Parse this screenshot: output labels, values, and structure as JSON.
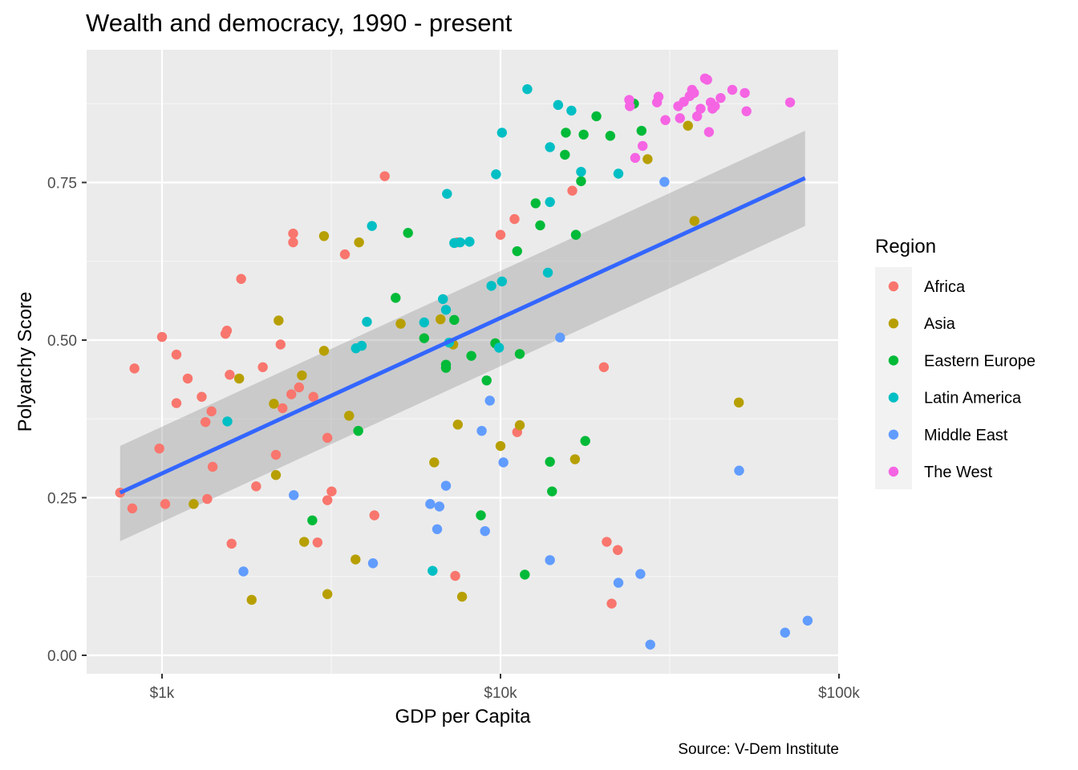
{
  "chart_data": {
    "type": "scatter",
    "title": "Wealth and democracy, 1990 - present",
    "xlabel": "GDP per Capita",
    "ylabel": "Polyarchy Score",
    "caption": "Source: V-Dem Institute",
    "x_scale": "log10",
    "xlim": [
      600,
      100000
    ],
    "ylim": [
      -0.03,
      0.96
    ],
    "x_ticks": [
      {
        "value": 1000,
        "label": "$1k"
      },
      {
        "value": 10000,
        "label": "$10k"
      },
      {
        "value": 100000,
        "label": "$100k"
      }
    ],
    "y_ticks": [
      {
        "value": 0,
        "label": "0.00"
      },
      {
        "value": 0.25,
        "label": "0.25"
      },
      {
        "value": 0.5,
        "label": "0.50"
      },
      {
        "value": 0.75,
        "label": "0.75"
      }
    ],
    "grid": true,
    "legend": {
      "title": "Region",
      "position": "right"
    },
    "series": [
      {
        "name": "Africa",
        "color": "#F8766D",
        "points": [
          [
            752,
            0.258
          ],
          [
            817,
            0.233
          ],
          [
            829,
            0.455
          ],
          [
            982,
            0.328
          ],
          [
            1000,
            0.505
          ],
          [
            1022,
            0.24
          ],
          [
            1103,
            0.477
          ],
          [
            1103,
            0.4
          ],
          [
            1191,
            0.439
          ],
          [
            1310,
            0.41
          ],
          [
            1344,
            0.37
          ],
          [
            1360,
            0.248
          ],
          [
            1400,
            0.387
          ],
          [
            1411,
            0.299
          ],
          [
            1540,
            0.51
          ],
          [
            1555,
            0.515
          ],
          [
            1585,
            0.445
          ],
          [
            1605,
            0.177
          ],
          [
            1713,
            0.597
          ],
          [
            1897,
            0.268
          ],
          [
            1985,
            0.457
          ],
          [
            2170,
            0.318
          ],
          [
            2240,
            0.493
          ],
          [
            2270,
            0.392
          ],
          [
            2410,
            0.414
          ],
          [
            2440,
            0.669
          ],
          [
            2440,
            0.655
          ],
          [
            2540,
            0.425
          ],
          [
            2800,
            0.41
          ],
          [
            2880,
            0.179
          ],
          [
            3080,
            0.345
          ],
          [
            3080,
            0.246
          ],
          [
            3170,
            0.26
          ],
          [
            3470,
            0.636
          ],
          [
            4240,
            0.222
          ],
          [
            4550,
            0.76
          ],
          [
            7350,
            0.126
          ],
          [
            7450,
            0.655
          ],
          [
            10000,
            0.667
          ],
          [
            11000,
            0.692
          ],
          [
            11200,
            0.354
          ],
          [
            16300,
            0.737
          ],
          [
            20200,
            0.457
          ],
          [
            20600,
            0.18
          ],
          [
            21300,
            0.082
          ],
          [
            22200,
            0.167
          ]
        ]
      },
      {
        "name": "Asia",
        "color": "#B79F00",
        "points": [
          [
            1240,
            0.24
          ],
          [
            1690,
            0.439
          ],
          [
            1840,
            0.088
          ],
          [
            2140,
            0.399
          ],
          [
            2170,
            0.286
          ],
          [
            2210,
            0.531
          ],
          [
            2590,
            0.444
          ],
          [
            2630,
            0.18
          ],
          [
            3010,
            0.483
          ],
          [
            3010,
            0.665
          ],
          [
            3080,
            0.097
          ],
          [
            3570,
            0.38
          ],
          [
            3730,
            0.152
          ],
          [
            3820,
            0.655
          ],
          [
            5070,
            0.526
          ],
          [
            6370,
            0.306
          ],
          [
            6650,
            0.533
          ],
          [
            7250,
            0.493
          ],
          [
            7480,
            0.366
          ],
          [
            7700,
            0.093
          ],
          [
            10000,
            0.332
          ],
          [
            11400,
            0.365
          ],
          [
            16600,
            0.311
          ],
          [
            27200,
            0.787
          ],
          [
            35800,
            0.84
          ],
          [
            37400,
            0.689
          ],
          [
            50600,
            0.401
          ]
        ]
      },
      {
        "name": "Eastern Europe",
        "color": "#00BA38",
        "points": [
          [
            2780,
            0.214
          ],
          [
            3800,
            0.356
          ],
          [
            4900,
            0.567
          ],
          [
            5330,
            0.67
          ],
          [
            5950,
            0.503
          ],
          [
            6900,
            0.461
          ],
          [
            6900,
            0.456
          ],
          [
            7300,
            0.532
          ],
          [
            8200,
            0.475
          ],
          [
            8750,
            0.222
          ],
          [
            9100,
            0.436
          ],
          [
            9650,
            0.495
          ],
          [
            11200,
            0.641
          ],
          [
            11400,
            0.478
          ],
          [
            11800,
            0.128
          ],
          [
            12700,
            0.717
          ],
          [
            13100,
            0.682
          ],
          [
            14000,
            0.307
          ],
          [
            14200,
            0.26
          ],
          [
            15500,
            0.794
          ],
          [
            15600,
            0.829
          ],
          [
            16700,
            0.667
          ],
          [
            17300,
            0.752
          ],
          [
            17600,
            0.826
          ],
          [
            17800,
            0.34
          ],
          [
            19200,
            0.855
          ],
          [
            21100,
            0.824
          ],
          [
            24800,
            0.875
          ],
          [
            26100,
            0.832
          ]
        ]
      },
      {
        "name": "Latin America",
        "color": "#00BFC4",
        "points": [
          [
            1560,
            0.371
          ],
          [
            3740,
            0.487
          ],
          [
            3890,
            0.491
          ],
          [
            4030,
            0.529
          ],
          [
            4170,
            0.681
          ],
          [
            5950,
            0.528
          ],
          [
            6300,
            0.134
          ],
          [
            6760,
            0.565
          ],
          [
            6900,
            0.548
          ],
          [
            6950,
            0.732
          ],
          [
            7050,
            0.496
          ],
          [
            7300,
            0.654
          ],
          [
            7600,
            0.655
          ],
          [
            8100,
            0.656
          ],
          [
            9400,
            0.586
          ],
          [
            9700,
            0.763
          ],
          [
            9900,
            0.488
          ],
          [
            10100,
            0.593
          ],
          [
            10100,
            0.829
          ],
          [
            12000,
            0.898
          ],
          [
            13800,
            0.607
          ],
          [
            14000,
            0.719
          ],
          [
            14000,
            0.806
          ],
          [
            14800,
            0.873
          ],
          [
            16200,
            0.864
          ],
          [
            17300,
            0.767
          ],
          [
            22300,
            0.764
          ]
        ]
      },
      {
        "name": "Middle East",
        "color": "#619CFF",
        "points": [
          [
            1740,
            0.133
          ],
          [
            2450,
            0.254
          ],
          [
            4200,
            0.146
          ],
          [
            6200,
            0.24
          ],
          [
            6500,
            0.2
          ],
          [
            6600,
            0.236
          ],
          [
            6900,
            0.269
          ],
          [
            8800,
            0.356
          ],
          [
            9000,
            0.197
          ],
          [
            9300,
            0.404
          ],
          [
            10200,
            0.306
          ],
          [
            14000,
            0.151
          ],
          [
            15000,
            0.504
          ],
          [
            22300,
            0.115
          ],
          [
            25900,
            0.129
          ],
          [
            27700,
            0.017
          ],
          [
            30500,
            0.751
          ],
          [
            50700,
            0.293
          ],
          [
            69300,
            0.036
          ],
          [
            80800,
            0.055
          ]
        ]
      },
      {
        "name": "The West",
        "color": "#F564E3",
        "points": [
          [
            24000,
            0.881
          ],
          [
            24100,
            0.871
          ],
          [
            25000,
            0.789
          ],
          [
            26300,
            0.808
          ],
          [
            29000,
            0.877
          ],
          [
            29300,
            0.886
          ],
          [
            30700,
            0.849
          ],
          [
            33500,
            0.871
          ],
          [
            33900,
            0.852
          ],
          [
            34800,
            0.878
          ],
          [
            36200,
            0.887
          ],
          [
            36800,
            0.897
          ],
          [
            37300,
            0.892
          ],
          [
            38100,
            0.855
          ],
          [
            39000,
            0.867
          ],
          [
            40200,
            0.915
          ],
          [
            40800,
            0.913
          ],
          [
            41300,
            0.83
          ],
          [
            41800,
            0.877
          ],
          [
            42300,
            0.867
          ],
          [
            43000,
            0.871
          ],
          [
            44700,
            0.884
          ],
          [
            48400,
            0.897
          ],
          [
            52700,
            0.892
          ],
          [
            53300,
            0.863
          ],
          [
            71700,
            0.877
          ]
        ]
      }
    ],
    "fit": {
      "method": "lm",
      "color": "#3366FF",
      "band_color": "#999999",
      "x_range": [
        752,
        79400
      ],
      "y_at_range": [
        0.258,
        0.757
      ],
      "ci_lower": [
        0.181,
        0.681
      ],
      "ci_upper": [
        0.332,
        0.832
      ]
    }
  }
}
